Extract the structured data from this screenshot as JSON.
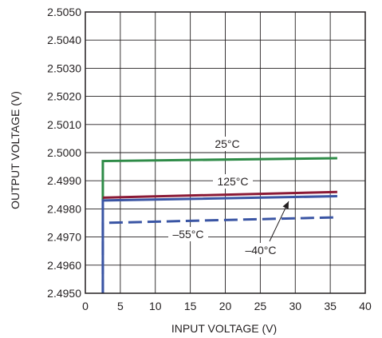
{
  "chart_data": {
    "type": "line",
    "xlabel": "INPUT VOLTAGE (V)",
    "ylabel": "OUTPUT VOLTAGE (V)",
    "xlim": [
      0,
      40
    ],
    "ylim": [
      2.495,
      2.505
    ],
    "xticks": [
      "0",
      "5",
      "10",
      "15",
      "20",
      "25",
      "30",
      "35",
      "40"
    ],
    "yticks": [
      "2.4950",
      "2.4960",
      "2.4970",
      "2.4980",
      "2.4990",
      "2.5000",
      "2.5010",
      "2.5020",
      "2.5030",
      "2.5040",
      "2.5050"
    ],
    "grid": true,
    "legend": "none",
    "series": [
      {
        "name": "25°C",
        "color": "#2e8b47",
        "style": "solid",
        "points": [
          [
            2.5,
            2.4983
          ],
          [
            2.5,
            2.4997
          ],
          [
            36,
            2.4998
          ]
        ]
      },
      {
        "name": "125°C",
        "color": "#8b1a36",
        "style": "solid",
        "points": [
          [
            2.5,
            2.4984
          ],
          [
            36,
            2.4986
          ]
        ]
      },
      {
        "name": "-40°C",
        "label": "–40°C",
        "color": "#3a55a4",
        "style": "solid",
        "points": [
          [
            2.5,
            2.495
          ],
          [
            2.5,
            2.4983
          ],
          [
            36,
            2.49845
          ]
        ]
      },
      {
        "name": "-55°C",
        "label": "–55°C",
        "color": "#3a55a4",
        "style": "dashed",
        "points": [
          [
            2.5,
            2.495
          ],
          [
            2.5,
            2.4975
          ],
          [
            36,
            2.4977
          ]
        ]
      }
    ]
  }
}
